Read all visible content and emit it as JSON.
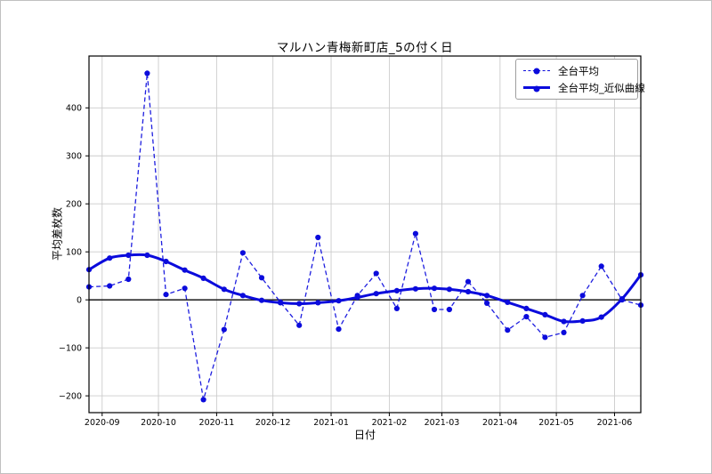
{
  "chart_data": {
    "type": "line",
    "title": "マルハン青梅新町店_5の付く日",
    "xlabel": "日付",
    "ylabel": "平均差枚数",
    "grid": true,
    "grid_color": "#cccccc",
    "zero_line": true,
    "legend_position": "upper right",
    "line_color": "#0b0bdc",
    "xlim": [
      "2020-08-25",
      "2021-06-15"
    ],
    "ylim": [
      -235,
      508
    ],
    "x_dates": [
      "2020-08-25",
      "2020-09-05",
      "2020-09-15",
      "2020-09-25",
      "2020-10-05",
      "2020-10-15",
      "2020-10-25",
      "2020-11-05",
      "2020-11-15",
      "2020-11-25",
      "2020-12-05",
      "2020-12-15",
      "2020-12-25",
      "2021-01-05",
      "2021-01-15",
      "2021-01-25",
      "2021-02-05",
      "2021-02-15",
      "2021-02-25",
      "2021-03-05",
      "2021-03-15",
      "2021-03-25",
      "2021-04-05",
      "2021-04-15",
      "2021-04-25",
      "2021-05-05",
      "2021-05-15",
      "2021-05-25",
      "2021-06-05",
      "2021-06-15"
    ],
    "series": [
      {
        "name": "全台平均",
        "style": "dashed",
        "values": [
          27,
          29,
          43,
          472,
          11,
          24,
          -208,
          -62,
          98,
          46,
          -5,
          -53,
          130,
          -61,
          9,
          55,
          -18,
          138,
          -20,
          -20,
          38,
          -7,
          -63,
          -35,
          -78,
          -68,
          9,
          70,
          0,
          -11
        ]
      },
      {
        "name": "全台平均_近似曲線",
        "style": "solid",
        "values": [
          63,
          87,
          93,
          93,
          80,
          62,
          45,
          22,
          9,
          -1,
          -6,
          -8,
          -6,
          -2,
          5,
          13,
          19,
          23,
          24,
          22,
          17,
          9,
          -5,
          -18,
          -31,
          -45,
          -44,
          -36,
          2,
          52
        ]
      }
    ],
    "x_ticks": [
      {
        "date": "2020-09-01",
        "label": "2020-09"
      },
      {
        "date": "2020-10-01",
        "label": "2020-10"
      },
      {
        "date": "2020-11-01",
        "label": "2020-11"
      },
      {
        "date": "2020-12-01",
        "label": "2020-12"
      },
      {
        "date": "2021-01-01",
        "label": "2021-01"
      },
      {
        "date": "2021-02-01",
        "label": "2021-02"
      },
      {
        "date": "2021-03-01",
        "label": "2021-03"
      },
      {
        "date": "2021-04-01",
        "label": "2021-04"
      },
      {
        "date": "2021-05-01",
        "label": "2021-05"
      },
      {
        "date": "2021-06-01",
        "label": "2021-06"
      }
    ],
    "y_ticks": [
      -200,
      -100,
      0,
      100,
      200,
      300,
      400
    ],
    "y_tick_labels": [
      "−200",
      "−100",
      "0",
      "100",
      "200",
      "300",
      "400"
    ]
  }
}
